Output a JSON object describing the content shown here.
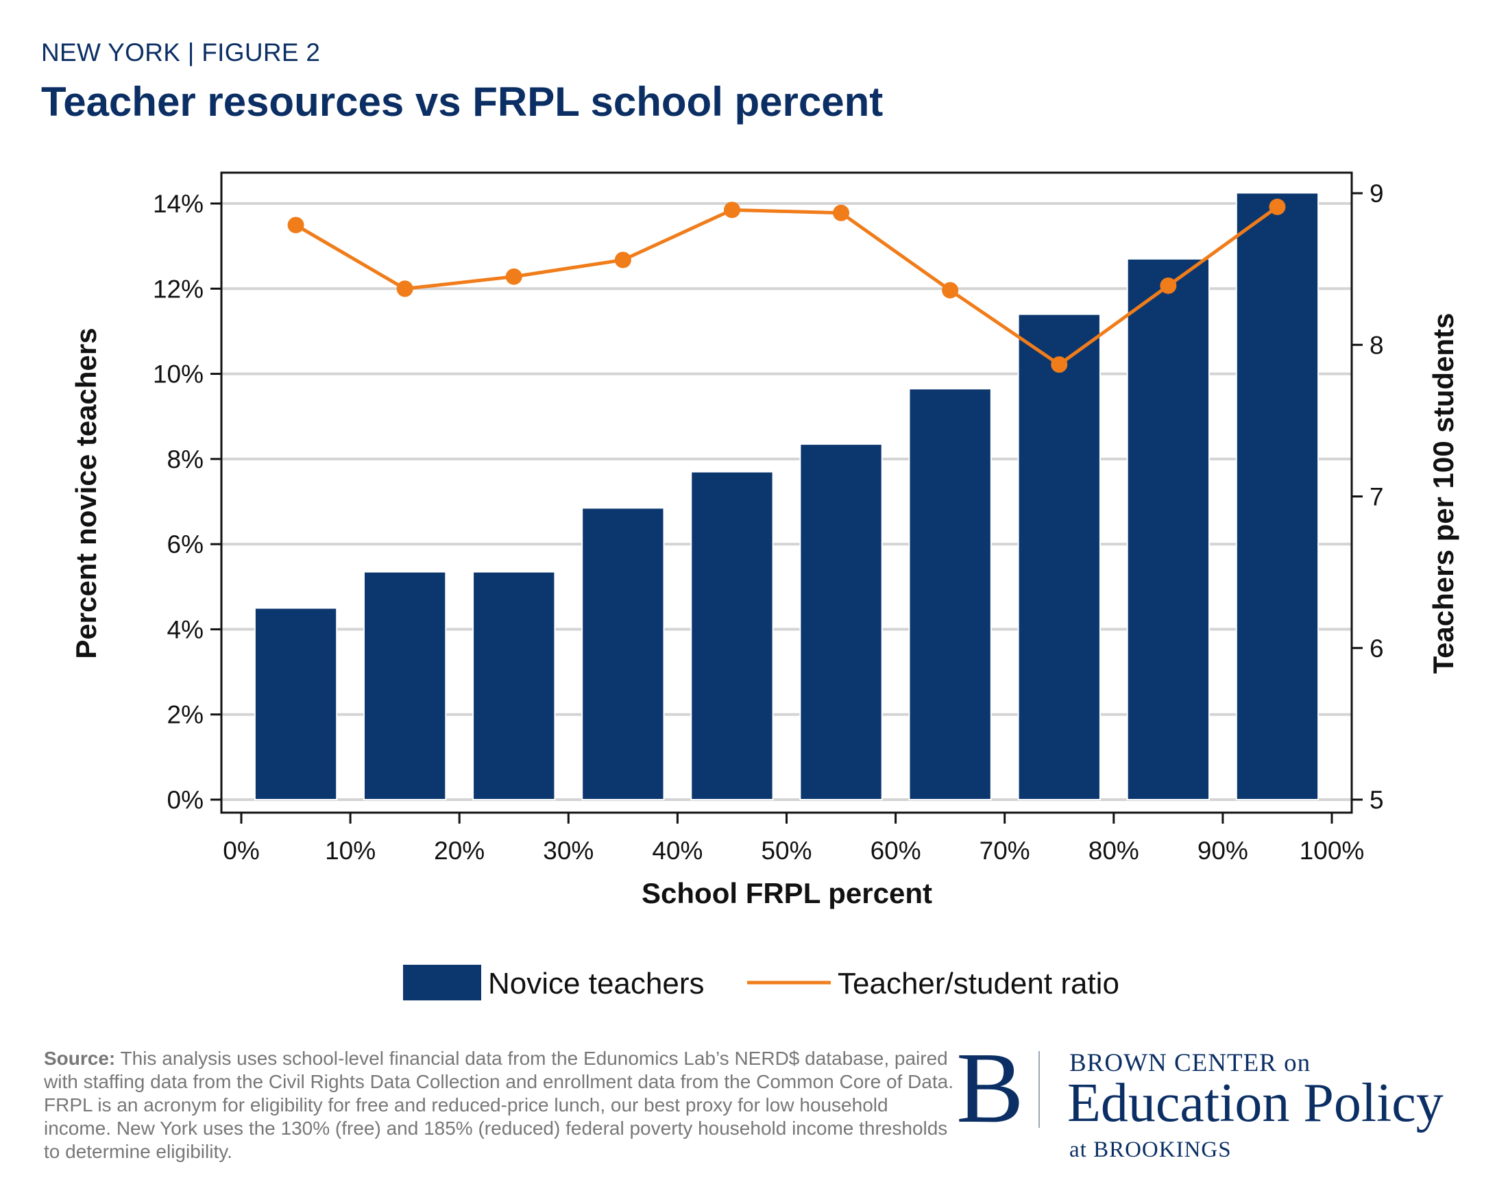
{
  "header": {
    "kicker": "NEW YORK  |  FIGURE 2",
    "title": "Teacher resources vs FRPL school percent"
  },
  "colors": {
    "bar": "#0b376e",
    "line": "#f07c1a",
    "grid": "#d4d4d4",
    "brand": "#0b2f64"
  },
  "chart_data": {
    "type": "bar",
    "title": "Teacher resources vs FRPL school percent",
    "xlabel": "School FRPL percent",
    "ylabel": "Percent novice teachers",
    "y2label": "Teachers per 100 students",
    "xlim": [
      0,
      100
    ],
    "ylim": [
      0,
      14.6
    ],
    "y2lim": [
      5,
      9.15
    ],
    "x_ticks": [
      "0%",
      "10%",
      "20%",
      "30%",
      "40%",
      "50%",
      "60%",
      "70%",
      "80%",
      "90%",
      "100%"
    ],
    "y_ticks": [
      "0%",
      "2%",
      "4%",
      "6%",
      "8%",
      "10%",
      "12%",
      "14%"
    ],
    "y2_ticks": [
      "5",
      "6",
      "7",
      "8",
      "9"
    ],
    "x": [
      5,
      15,
      25,
      35,
      45,
      55,
      65,
      75,
      85,
      95
    ],
    "series": [
      {
        "name": "Novice teachers",
        "type": "bar",
        "axis": "left",
        "values": [
          4.5,
          5.35,
          5.35,
          6.85,
          7.7,
          8.35,
          9.65,
          11.4,
          12.7,
          14.25
        ]
      },
      {
        "name": "Teacher/student ratio",
        "type": "line",
        "axis": "right",
        "values": [
          8.79,
          8.37,
          8.45,
          8.56,
          8.89,
          8.87,
          8.36,
          7.87,
          8.39,
          8.91
        ]
      }
    ],
    "grid": true,
    "legend": "bottom-center"
  },
  "footer": {
    "source_label": "Source:",
    "source_text": " This analysis uses school-level financial data from the Edunomics Lab’s NERD$ database, paired with staffing data from the Civil Rights Data Collection and enrollment data from the Common Core of Data. FRPL is an acronym for eligibility for free and reduced-price lunch, our best proxy for low household income. New York uses the 130% (free) and 185% (reduced) federal poverty household income thresholds to determine eligibility."
  },
  "logo": {
    "letter": "B",
    "line1": "BROWN CENTER on",
    "line2": "Education Policy",
    "line3": "at BROOKINGS"
  }
}
